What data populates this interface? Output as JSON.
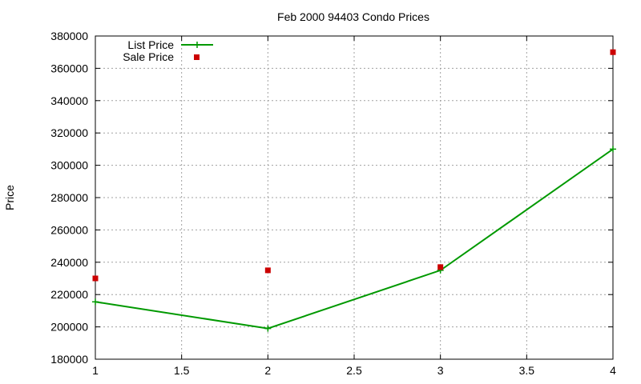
{
  "chart_data": {
    "type": "line",
    "title": "Feb 2000 94403 Condo Prices",
    "xlabel": "",
    "ylabel": "Price",
    "xlim": [
      1,
      4
    ],
    "ylim": [
      180000,
      380000
    ],
    "x_ticks": [
      "1",
      "1.5",
      "2",
      "2.5",
      "3",
      "3.5",
      "4"
    ],
    "y_ticks": [
      "180000",
      "200000",
      "220000",
      "240000",
      "260000",
      "280000",
      "300000",
      "320000",
      "340000",
      "360000",
      "380000"
    ],
    "grid": true,
    "legend_position": "top-left",
    "series": [
      {
        "name": "List Price",
        "style": "line-points",
        "color": "#009900",
        "x": [
          1,
          2,
          3,
          4
        ],
        "y": [
          215500,
          199000,
          235000,
          310000
        ]
      },
      {
        "name": "Sale Price",
        "style": "points",
        "color": "#cc0000",
        "x": [
          1,
          2,
          3,
          4
        ],
        "y": [
          230000,
          235000,
          237000,
          370000
        ]
      }
    ]
  }
}
